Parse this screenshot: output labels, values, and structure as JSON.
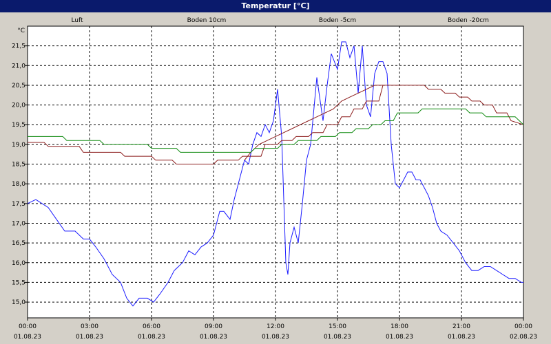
{
  "window_title": "Temperatur [°C]",
  "colors": {
    "frame_bg": "#d4d0c8",
    "title_bg": "#0a1a6c",
    "plot_bg": "#ffffff",
    "grid": "#000000",
    "luft": "#1a1aff",
    "boden10": "#8b1a1a",
    "boden5": "#8b1a1a",
    "boden20": "#0e8a0e"
  },
  "chart_data": {
    "type": "line",
    "title": "Temperatur [°C]",
    "ylabel": "°C",
    "xlabel": "",
    "ylim": [
      14.6,
      22.0
    ],
    "xlim_hours": [
      0,
      24
    ],
    "grid": true,
    "legend_placement": "top",
    "y_ticks": [
      15.0,
      15.5,
      16.0,
      16.5,
      17.0,
      17.5,
      18.0,
      18.5,
      19.0,
      19.5,
      20.0,
      20.5,
      21.0,
      21.5
    ],
    "y_tick_labels": [
      "15,0",
      "15,5",
      "16,0",
      "16,5",
      "17,0",
      "17,5",
      "18,0",
      "18,5",
      "19,0",
      "19,5",
      "20,0",
      "20,5",
      "21,0",
      "21,5"
    ],
    "x_ticks": [
      {
        "time": "00:00",
        "date": "01.08.23"
      },
      {
        "time": "03:00",
        "date": "01.08.23"
      },
      {
        "time": "06:00",
        "date": "01.08.23"
      },
      {
        "time": "09:00",
        "date": "01.08.23"
      },
      {
        "time": "12:00",
        "date": "01.08.23"
      },
      {
        "time": "15:00",
        "date": "01.08.23"
      },
      {
        "time": "18:00",
        "date": "01.08.23"
      },
      {
        "time": "21:00",
        "date": "01.08.23"
      },
      {
        "time": "00:00",
        "date": "02.08.23"
      }
    ],
    "series": [
      {
        "name": "Luft",
        "color": "#1a1aff",
        "x": [
          0,
          0.4,
          0.7,
          1.0,
          1.4,
          1.8,
          2.3,
          2.7,
          3.0,
          3.3,
          3.7,
          4.1,
          4.5,
          4.8,
          5.1,
          5.4,
          5.8,
          6.1,
          6.4,
          6.8,
          7.1,
          7.5,
          7.8,
          8.1,
          8.4,
          8.7,
          9.0,
          9.3,
          9.5,
          9.8,
          10.0,
          10.3,
          10.5,
          10.7,
          10.9,
          11.1,
          11.3,
          11.5,
          11.7,
          11.9,
          12.1,
          12.3,
          12.5,
          12.6,
          12.7,
          12.9,
          13.1,
          13.3,
          13.5,
          13.7,
          14.0,
          14.3,
          14.5,
          14.7,
          15.0,
          15.2,
          15.4,
          15.6,
          15.8,
          16.0,
          16.2,
          16.4,
          16.6,
          16.8,
          17.0,
          17.2,
          17.4,
          17.6,
          17.8,
          18.0,
          18.2,
          18.4,
          18.6,
          18.8,
          19.0,
          19.2,
          19.4,
          19.6,
          19.8,
          20.0,
          20.3,
          20.6,
          20.9,
          21.2,
          21.5,
          21.8,
          22.1,
          22.4,
          22.7,
          23.0,
          23.3,
          23.6,
          23.9,
          24.0
        ],
        "y": [
          17.5,
          17.6,
          17.5,
          17.4,
          17.1,
          16.8,
          16.8,
          16.6,
          16.6,
          16.4,
          16.1,
          15.7,
          15.5,
          15.1,
          14.9,
          15.1,
          15.1,
          15.0,
          15.2,
          15.5,
          15.8,
          16.0,
          16.3,
          16.2,
          16.4,
          16.5,
          16.7,
          17.3,
          17.3,
          17.1,
          17.6,
          18.2,
          18.6,
          18.5,
          19.0,
          19.3,
          19.2,
          19.5,
          19.3,
          19.6,
          20.4,
          19.2,
          16.0,
          15.7,
          16.5,
          16.9,
          16.5,
          17.5,
          18.6,
          19.0,
          20.7,
          19.6,
          20.5,
          21.3,
          20.9,
          21.6,
          21.6,
          21.2,
          21.5,
          20.3,
          21.5,
          20.0,
          19.7,
          20.8,
          21.1,
          21.1,
          20.8,
          19.0,
          18.0,
          17.9,
          18.1,
          18.3,
          18.3,
          18.1,
          18.1,
          17.9,
          17.7,
          17.4,
          17.0,
          16.8,
          16.7,
          16.5,
          16.3,
          16.0,
          15.8,
          15.8,
          15.9,
          15.9,
          15.8,
          15.7,
          15.6,
          15.6,
          15.5,
          15.5
        ]
      },
      {
        "name": "Boden 10cm",
        "color": "#8b1a1a",
        "x": [
          0,
          0.8,
          1.0,
          2.5,
          2.7,
          4.5,
          4.7,
          6.0,
          6.2,
          7.0,
          7.2,
          9.0,
          9.2,
          10.2,
          10.4,
          11.3,
          11.5,
          12.1,
          12.3,
          12.8,
          13.0,
          13.6,
          13.8,
          14.3,
          14.5,
          15.0,
          15.2,
          15.6,
          15.8,
          16.2,
          16.4,
          17.0,
          17.2,
          19.2,
          19.4,
          20.0,
          20.2,
          20.7,
          20.9,
          21.3,
          21.5,
          21.9,
          22.1,
          22.5,
          22.7,
          23.2,
          23.4,
          24.0
        ],
        "y": [
          19.05,
          19.05,
          18.95,
          18.95,
          18.8,
          18.8,
          18.7,
          18.7,
          18.6,
          18.6,
          18.5,
          18.5,
          18.6,
          18.6,
          18.7,
          18.7,
          19.0,
          19.0,
          19.1,
          19.1,
          19.2,
          19.2,
          19.3,
          19.3,
          19.5,
          19.5,
          19.7,
          19.7,
          19.9,
          19.9,
          20.1,
          20.1,
          20.5,
          20.5,
          20.4,
          20.4,
          20.3,
          20.3,
          20.2,
          20.2,
          20.1,
          20.1,
          20.0,
          20.0,
          19.8,
          19.8,
          19.6,
          19.5
        ]
      },
      {
        "name": "Boden -5cm",
        "color": "#8b1a1a",
        "x": [
          10.5,
          10.8,
          11.2,
          11.6,
          12.0,
          12.4,
          12.8,
          13.2,
          13.6,
          14.0,
          14.4,
          14.8,
          15.2,
          15.6,
          16.0,
          16.4,
          16.8,
          17.2
        ],
        "y": [
          18.6,
          18.8,
          19.0,
          19.1,
          19.2,
          19.3,
          19.4,
          19.5,
          19.6,
          19.7,
          19.8,
          19.9,
          20.1,
          20.2,
          20.3,
          20.4,
          20.5,
          20.5
        ]
      },
      {
        "name": "Boden -20cm",
        "color": "#0e8a0e",
        "x": [
          0,
          1.7,
          1.9,
          3.5,
          3.7,
          5.8,
          6.0,
          7.2,
          7.4,
          10.8,
          11.0,
          12.1,
          12.3,
          12.9,
          13.1,
          14.0,
          14.2,
          14.9,
          15.1,
          15.7,
          15.9,
          16.5,
          16.7,
          17.1,
          17.3,
          17.7,
          17.9,
          18.9,
          19.1,
          21.2,
          21.4,
          22.0,
          22.2,
          23.6,
          23.8,
          24.0
        ],
        "y": [
          19.2,
          19.2,
          19.1,
          19.1,
          19.0,
          19.0,
          18.9,
          18.9,
          18.8,
          18.8,
          18.9,
          18.9,
          19.0,
          19.0,
          19.1,
          19.1,
          19.2,
          19.2,
          19.3,
          19.3,
          19.4,
          19.4,
          19.5,
          19.5,
          19.6,
          19.6,
          19.8,
          19.8,
          19.9,
          19.9,
          19.8,
          19.8,
          19.7,
          19.7,
          19.6,
          19.5
        ]
      }
    ]
  }
}
